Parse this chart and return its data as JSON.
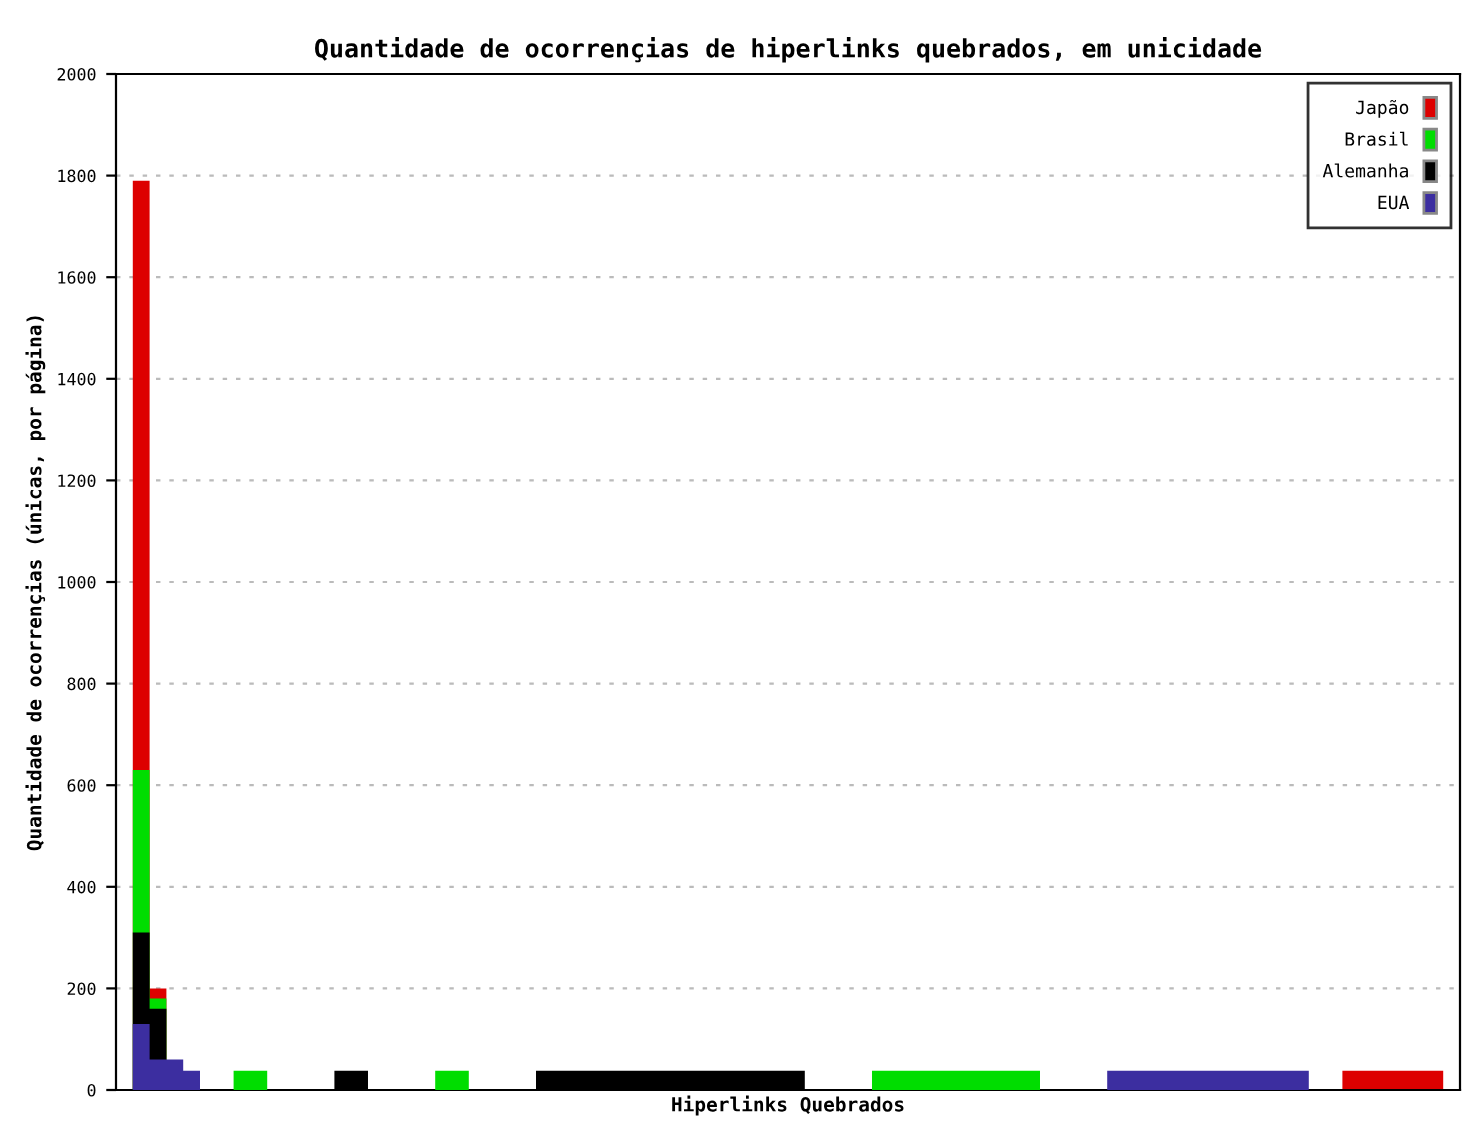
{
  "chart_data": {
    "type": "area",
    "title": "Quantidade de ocorrençias de hiperlinks quebrados, em unicidade",
    "xlabel": "Hiperlinks Quebrados",
    "ylabel": "Quantidade de ocorrençias (únicas, por página)",
    "categories": [
      null,
      null,
      null,
      null,
      null,
      null,
      null,
      null,
      null,
      null,
      null,
      null,
      null,
      null,
      null,
      null,
      null,
      null,
      null,
      null,
      null,
      null,
      null,
      null,
      null,
      null,
      null,
      null,
      null,
      null,
      null,
      null,
      null,
      null,
      null,
      null,
      null,
      null,
      null,
      null
    ],
    "series": [
      {
        "name": "Japão",
        "color": "#dd0000",
        "values": [
          1790,
          200,
          null,
          null,
          null,
          null,
          null,
          null,
          null,
          null,
          null,
          null,
          null,
          null,
          null,
          null,
          null,
          null,
          null,
          null,
          null,
          null,
          null,
          null,
          null,
          null,
          null,
          null,
          null,
          null,
          null,
          null,
          null,
          null,
          null,
          null,
          38,
          38,
          38,
          38
        ]
      },
      {
        "name": "Brasil",
        "color": "#00dd00",
        "values": [
          630,
          180,
          null,
          38,
          38,
          null,
          null,
          null,
          null,
          38,
          38,
          null,
          null,
          null,
          null,
          null,
          null,
          null,
          null,
          null,
          null,
          null,
          38,
          38,
          38,
          38,
          38,
          38,
          null,
          null,
          null,
          null,
          null,
          null,
          null,
          null,
          null,
          null,
          null,
          null
        ]
      },
      {
        "name": "Alemanha",
        "color": "#000000",
        "values": [
          310,
          160,
          null,
          null,
          null,
          null,
          38,
          38,
          null,
          null,
          null,
          null,
          38,
          38,
          38,
          38,
          38,
          38,
          38,
          38,
          38,
          null,
          null,
          null,
          null,
          null,
          null,
          null,
          null,
          null,
          null,
          null,
          null,
          null,
          null,
          null,
          null,
          null,
          null,
          null
        ]
      },
      {
        "name": "EUA",
        "color": "#3c2ea0",
        "values": [
          130,
          60,
          38,
          null,
          null,
          null,
          null,
          null,
          null,
          null,
          null,
          null,
          null,
          null,
          null,
          null,
          null,
          null,
          null,
          null,
          null,
          null,
          null,
          null,
          null,
          null,
          null,
          null,
          null,
          38,
          38,
          38,
          38,
          38,
          38,
          38,
          null,
          null,
          null,
          null
        ]
      }
    ],
    "ylim": [
      0,
      2000
    ],
    "yticks": [
      0,
      200,
      400,
      600,
      800,
      1000,
      1200,
      1400,
      1600,
      1800,
      2000
    ],
    "grid": "y",
    "legend": "top right",
    "tick_labels": "y"
  }
}
